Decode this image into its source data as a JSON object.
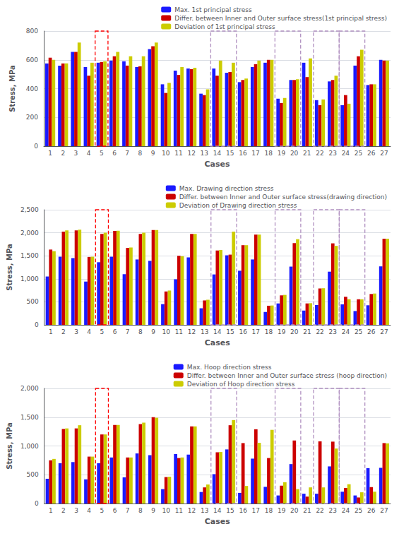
{
  "chart_data": [
    {
      "type": "bar",
      "xlabel": "Cases",
      "ylabel": "Stress, MPa",
      "categories": [
        "1",
        "2",
        "3",
        "4",
        "5",
        "6",
        "7",
        "8",
        "9",
        "10",
        "11",
        "12",
        "13",
        "14",
        "15",
        "16",
        "17",
        "18",
        "19",
        "20",
        "21",
        "22",
        "23",
        "24",
        "25",
        "26",
        "27"
      ],
      "series": [
        {
          "name": "Max. 1st principal stress",
          "color": "#1a1aff",
          "values": [
            575,
            560,
            655,
            550,
            580,
            595,
            590,
            550,
            675,
            430,
            525,
            540,
            365,
            540,
            510,
            445,
            550,
            580,
            330,
            460,
            580,
            320,
            450,
            285,
            560,
            425,
            600
          ]
        },
        {
          "name": "Differ. between Inner and Outer surface stress(1st principal stress)",
          "color": "#cc0000",
          "values": [
            615,
            575,
            655,
            490,
            585,
            625,
            560,
            555,
            695,
            370,
            495,
            535,
            355,
            490,
            515,
            460,
            570,
            600,
            300,
            460,
            480,
            285,
            460,
            355,
            625,
            430,
            595
          ]
        },
        {
          "name": "Deviation of 1st principal stress",
          "color": "#cccc00",
          "values": [
            600,
            575,
            720,
            580,
            590,
            655,
            625,
            625,
            720,
            440,
            550,
            545,
            395,
            595,
            580,
            470,
            595,
            600,
            335,
            465,
            610,
            325,
            490,
            295,
            670,
            430,
            595
          ]
        }
      ],
      "ylim": [
        0,
        800
      ],
      "yticks": [
        0,
        200,
        400,
        600,
        800
      ],
      "grid": true,
      "legend": "upper right",
      "boxes": [
        {
          "from": "5",
          "to": "5",
          "color": "red"
        },
        {
          "from": "14",
          "to": "15",
          "color": "#b090c0"
        },
        {
          "from": "19",
          "to": "20",
          "color": "#b090c0"
        },
        {
          "from": "22",
          "to": "23",
          "color": "#b090c0"
        },
        {
          "from": "24",
          "to": "25",
          "color": "#b090c0"
        }
      ]
    },
    {
      "type": "bar",
      "xlabel": "Cases",
      "ylabel": "Stress, MPa",
      "categories": [
        "1",
        "2",
        "3",
        "4",
        "5",
        "6",
        "7",
        "8",
        "9",
        "10",
        "11",
        "12",
        "13",
        "14",
        "15",
        "16",
        "17",
        "18",
        "19",
        "20",
        "21",
        "22",
        "23",
        "24",
        "25",
        "26",
        "27"
      ],
      "series": [
        {
          "name": "Max. Drawing direction stress",
          "color": "#1a1aff",
          "values": [
            1050,
            1480,
            1450,
            940,
            1360,
            1480,
            1100,
            1420,
            1390,
            450,
            990,
            1465,
            360,
            1095,
            1510,
            1175,
            1420,
            280,
            465,
            1265,
            310,
            430,
            1155,
            445,
            300,
            425,
            1270
          ]
        },
        {
          "name": "Differ. between Inner and Outer surface stress(drawing direction)",
          "color": "#cc0000",
          "values": [
            1635,
            2025,
            2050,
            1475,
            1975,
            2040,
            1670,
            1975,
            2060,
            725,
            1500,
            1975,
            530,
            1615,
            1525,
            1730,
            1960,
            415,
            640,
            1775,
            465,
            790,
            1770,
            610,
            555,
            670,
            1870
          ]
        },
        {
          "name": "Deviation of Drawing direction stress",
          "color": "#cccc00",
          "values": [
            1600,
            2050,
            2065,
            1480,
            2000,
            2045,
            1680,
            2000,
            2060,
            745,
            1490,
            1975,
            545,
            1625,
            2025,
            1730,
            1960,
            420,
            650,
            1860,
            470,
            795,
            1715,
            555,
            555,
            680,
            1870
          ]
        }
      ],
      "ylim": [
        0,
        2500
      ],
      "yticks": [
        0,
        500,
        1000,
        1500,
        2000,
        2500
      ],
      "grid": true,
      "legend": "upper right",
      "boxes": [
        {
          "from": "5",
          "to": "5",
          "color": "red"
        },
        {
          "from": "14",
          "to": "15",
          "color": "#b090c0"
        },
        {
          "from": "19",
          "to": "20",
          "color": "#b090c0"
        },
        {
          "from": "22",
          "to": "23",
          "color": "#b090c0"
        },
        {
          "from": "24",
          "to": "25",
          "color": "#b090c0"
        }
      ]
    },
    {
      "type": "bar",
      "xlabel": "Cases",
      "ylabel": "Stress, MPa",
      "categories": [
        "1",
        "2",
        "3",
        "4",
        "5",
        "6",
        "7",
        "8",
        "9",
        "10",
        "11",
        "12",
        "13",
        "14",
        "15",
        "16",
        "17",
        "18",
        "19",
        "20",
        "21",
        "22",
        "23",
        "24",
        "25",
        "26",
        "27"
      ],
      "series": [
        {
          "name": "Max. Hoop direction stress",
          "color": "#1a1aff",
          "values": [
            430,
            700,
            720,
            420,
            700,
            800,
            455,
            870,
            840,
            250,
            860,
            850,
            200,
            510,
            940,
            185,
            780,
            290,
            140,
            685,
            170,
            170,
            645,
            205,
            140,
            615,
            620
          ]
        },
        {
          "name": "Differ. between Inner and Outer surface stress (hoop direction)",
          "color": "#cc0000",
          "values": [
            750,
            1295,
            1305,
            815,
            1200,
            1365,
            800,
            1380,
            1500,
            460,
            790,
            1340,
            280,
            890,
            1360,
            1050,
            1290,
            790,
            310,
            1095,
            120,
            1080,
            1075,
            270,
            105,
            285,
            1050
          ]
        },
        {
          "name": "Deviation of Hoop direction stress",
          "color": "#cccc00",
          "values": [
            775,
            1305,
            1360,
            815,
            1200,
            1365,
            800,
            1405,
            1490,
            465,
            800,
            1340,
            330,
            895,
            1450,
            305,
            1055,
            1280,
            370,
            250,
            280,
            280,
            955,
            335,
            195,
            205,
            1045
          ]
        }
      ],
      "ylim": [
        0,
        2000
      ],
      "yticks": [
        0,
        500,
        1000,
        1500,
        2000
      ],
      "grid": true,
      "legend": "upper right",
      "boxes": [
        {
          "from": "5",
          "to": "5",
          "color": "red"
        },
        {
          "from": "14",
          "to": "15",
          "color": "#b090c0"
        },
        {
          "from": "19",
          "to": "20",
          "color": "#b090c0"
        },
        {
          "from": "22",
          "to": "23",
          "color": "#b090c0"
        },
        {
          "from": "24",
          "to": "25",
          "color": "#b090c0"
        }
      ]
    }
  ]
}
